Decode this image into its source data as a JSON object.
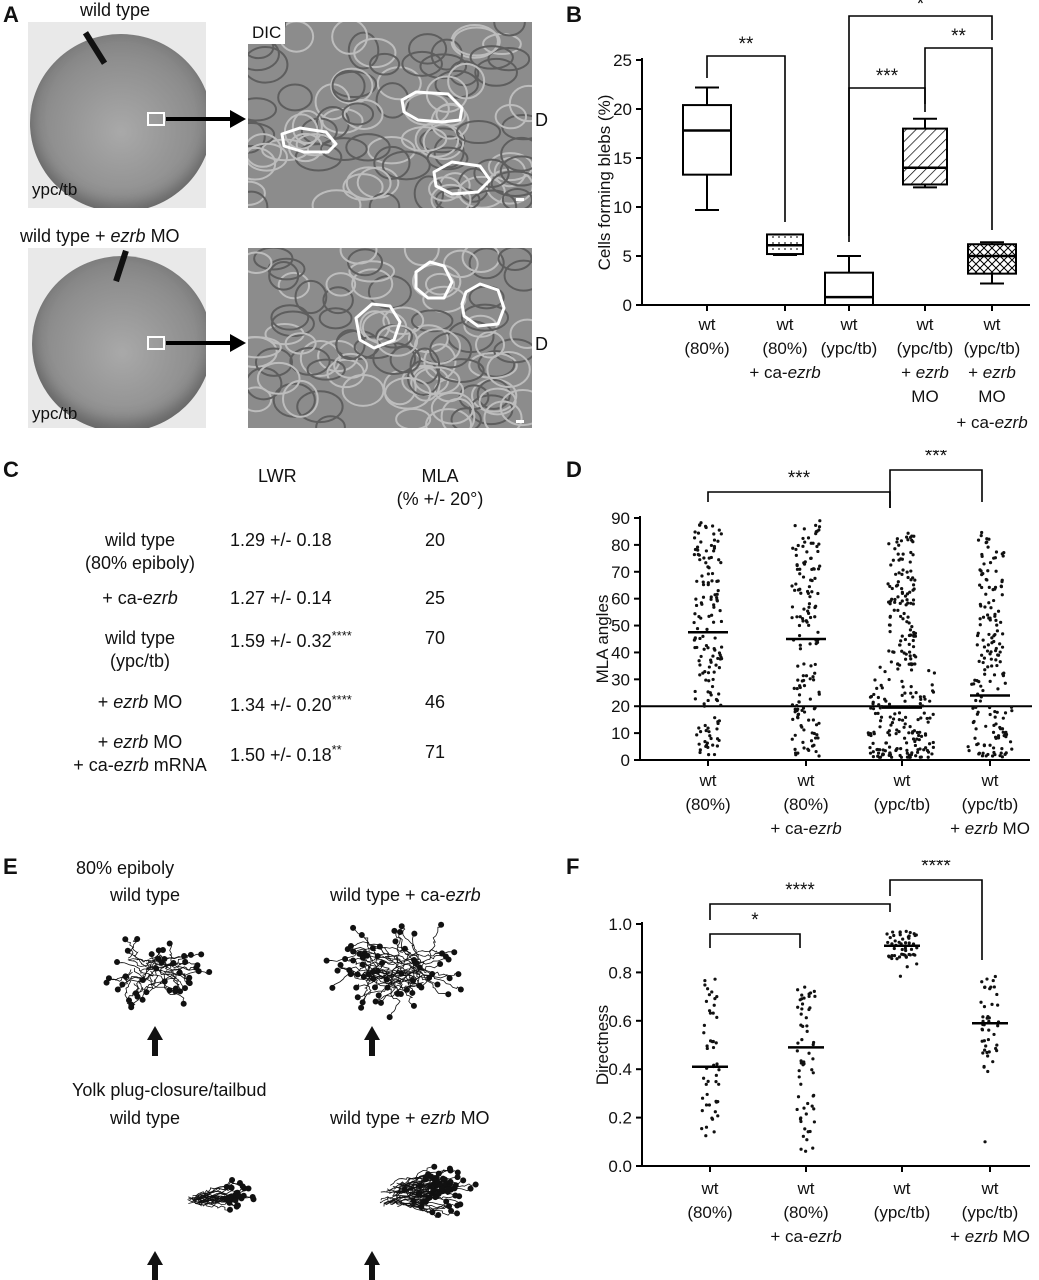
{
  "panel_a": {
    "label": "A",
    "top_caption": "wild type",
    "bottom_caption_prefix": "wild type + ",
    "bottom_caption_italic": "ezrb",
    "bottom_caption_suffix": " MO",
    "stage_top": "ypc/tb",
    "stage_bottom": "ypc/tb",
    "dic_label": "DIC",
    "d_label_top": "D",
    "d_label_bottom": "D"
  },
  "panel_b": {
    "label": "B",
    "ylabel": "Cells forming blebs (%)",
    "yticks": [
      "0",
      "5",
      "10",
      "15",
      "20",
      "25"
    ],
    "sig": [
      "**",
      "***",
      "**",
      "*"
    ],
    "groups": [
      {
        "l1": "wt",
        "l2": "(80%)",
        "l3": "",
        "l4": "",
        "l5": ""
      },
      {
        "l1": "wt",
        "l2": "(80%)",
        "l3": "+ ca-",
        "l3i": "ezrb",
        "l4": "",
        "l5": ""
      },
      {
        "l1": "wt",
        "l2": "(ypc/tb)",
        "l3": "",
        "l4": "",
        "l5": ""
      },
      {
        "l1": "wt",
        "l2": "(ypc/tb)",
        "l3": "+ ",
        "l3i": "ezrb",
        "l4": "MO",
        "l5": ""
      },
      {
        "l1": "wt",
        "l2": "(ypc/tb)",
        "l3": "+ ",
        "l3i": "ezrb",
        "l4": "MO",
        "l5": "+ ca-",
        "l5i": "ezrb"
      }
    ]
  },
  "panel_c": {
    "label": "C",
    "col_lwr": "LWR",
    "col_mla": "MLA",
    "col_mla2": "(% +/- 20°)",
    "rows": [
      {
        "a": "wild type",
        "b": "(80% epiboly)",
        "lwr": "1.29 +/- 0.18",
        "sup": "",
        "mla": "20"
      },
      {
        "a": "+ ca-",
        "ai": "ezrb",
        "b": "",
        "lwr": "1.27 +/- 0.14",
        "sup": "",
        "mla": "25"
      },
      {
        "a": "wild type",
        "b": "(ypc/tb)",
        "lwr": "1.59 +/- 0.32",
        "sup": "****",
        "mla": "70"
      },
      {
        "a": "+ ",
        "ai": "ezrb",
        "as": " MO",
        "b": "",
        "lwr": "1.34 +/- 0.20",
        "sup": "****",
        "mla": "46"
      },
      {
        "a": "+ ",
        "ai": "ezrb",
        "as": " MO",
        "b": "+ ca-",
        "bi": "ezrb",
        "bs": " mRNA",
        "lwr": "1.50 +/- 0.18",
        "sup": "**",
        "mla": "71"
      }
    ]
  },
  "panel_d": {
    "label": "D",
    "ylabel": "MLA angles",
    "yticks": [
      "0",
      "10",
      "20",
      "30",
      "40",
      "50",
      "60",
      "70",
      "80",
      "90"
    ],
    "sig": [
      "***",
      "***"
    ],
    "groups": [
      {
        "l1": "wt",
        "l2": "(80%)",
        "l3": ""
      },
      {
        "l1": "wt",
        "l2": "(80%)",
        "l3": "+ ca-",
        "l3i": "ezrb"
      },
      {
        "l1": "wt",
        "l2": "(ypc/tb)",
        "l3": ""
      },
      {
        "l1": "wt",
        "l2": "(ypc/tb)",
        "l3": "+ ",
        "l3i": "ezrb",
        "l3s": " MO"
      }
    ]
  },
  "panel_e": {
    "label": "E",
    "title_top": "80% epiboly",
    "wt1": "wild type",
    "ca_prefix": "wild type + ca-",
    "ca_italic": "ezrb",
    "title_bottom": "Yolk plug-closure/tailbud",
    "wt2": "wild type",
    "mo_prefix": "wild type + ",
    "mo_italic": "ezrb",
    "mo_suffix": " MO"
  },
  "panel_f": {
    "label": "F",
    "ylabel": "Directness",
    "yticks": [
      "0.0",
      "0.2",
      "0.4",
      "0.6",
      "0.8",
      "1.0"
    ],
    "sig": [
      "****",
      "*",
      "****"
    ],
    "groups": [
      {
        "l1": "wt",
        "l2": "(80%)",
        "l3": ""
      },
      {
        "l1": "wt",
        "l2": "(80%)",
        "l3": "+ ca-",
        "l3i": "ezrb"
      },
      {
        "l1": "wt",
        "l2": "(ypc/tb)",
        "l3": ""
      },
      {
        "l1": "wt",
        "l2": "(ypc/tb)",
        "l3": "+ ",
        "l3i": "ezrb",
        "l3s": " MO"
      }
    ]
  },
  "chart_data": [
    {
      "type": "box",
      "panel": "B",
      "ylabel": "Cells forming blebs (%)",
      "ylim": [
        0,
        25
      ],
      "categories": [
        "wt (80%)",
        "wt (80%) + ca-ezrb",
        "wt (ypc/tb)",
        "wt (ypc/tb) + ezrb MO",
        "wt (ypc/tb) + ezrb MO + ca-ezrb"
      ],
      "boxes": [
        {
          "min": 9.7,
          "q1": 13.3,
          "median": 17.8,
          "q3": 20.4,
          "max": 22.2,
          "fill": "white"
        },
        {
          "min": 5.1,
          "q1": 5.2,
          "median": 6.1,
          "q3": 7.2,
          "max": 7.2,
          "fill": "dotted"
        },
        {
          "min": 0.0,
          "q1": 0.0,
          "median": 0.8,
          "q3": 3.3,
          "max": 5.0,
          "fill": "white"
        },
        {
          "min": 12.0,
          "q1": 12.3,
          "median": 14.0,
          "q3": 18.0,
          "max": 19.0,
          "fill": "hatched"
        },
        {
          "min": 2.2,
          "q1": 3.2,
          "median": 5.0,
          "q3": 6.2,
          "max": 6.4,
          "fill": "crosshatch"
        }
      ]
    },
    {
      "type": "scatter",
      "panel": "D",
      "ylabel": "MLA angles",
      "ylim": [
        0,
        90
      ],
      "reference_line": 20,
      "categories": [
        "wt (80%)",
        "wt (80%) + ca-ezrb",
        "wt (ypc/tb)",
        "wt (ypc/tb) + ezrb MO"
      ],
      "means": [
        47.5,
        45.0,
        19.5,
        24.0
      ],
      "n": [
        150,
        150,
        270,
        170
      ],
      "range": [
        [
          2,
          89
        ],
        [
          1,
          89
        ],
        [
          1,
          85
        ],
        [
          1,
          85
        ]
      ]
    },
    {
      "type": "scatter",
      "panel": "F",
      "ylabel": "Directness",
      "ylim": [
        0.0,
        1.0
      ],
      "categories": [
        "wt (80%)",
        "wt (80%) + ca-ezrb",
        "wt (ypc/tb)",
        "wt (ypc/tb) + ezrb MO"
      ],
      "means": [
        0.41,
        0.49,
        0.91,
        0.59
      ],
      "n": [
        50,
        60,
        50,
        45
      ],
      "range": [
        [
          0.11,
          0.78
        ],
        [
          0.06,
          0.75
        ],
        [
          0.77,
          0.97
        ],
        [
          0.1,
          0.78
        ]
      ]
    }
  ]
}
